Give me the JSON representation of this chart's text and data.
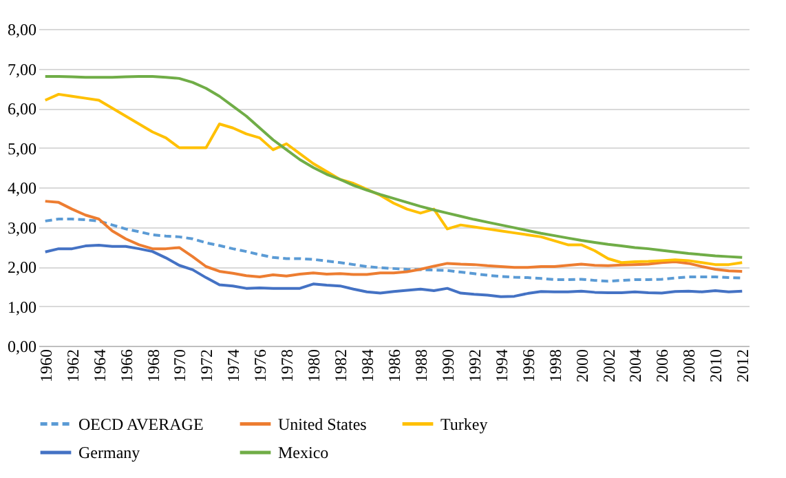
{
  "chart_data": {
    "type": "line",
    "categories": [
      "1960",
      null,
      "1962",
      null,
      "1964",
      null,
      "1966",
      null,
      "1968",
      null,
      "1970",
      null,
      "1972",
      null,
      "1974",
      null,
      "1976",
      null,
      "1978",
      null,
      "1980",
      null,
      "1982",
      null,
      "1984",
      null,
      "1986",
      null,
      "1988",
      null,
      "1990",
      null,
      "1992",
      null,
      "1994",
      null,
      "1996",
      null,
      "1998",
      null,
      "2000",
      null,
      "2002",
      null,
      "2004",
      null,
      "2006",
      null,
      "2008",
      null,
      "2010",
      null,
      "2012"
    ],
    "series": [
      {
        "name": "OECD AVERAGE",
        "color": "#5b9bd5",
        "line_style": "dashed",
        "values": [
          3.15,
          3.2,
          3.2,
          3.18,
          3.15,
          3.05,
          2.95,
          2.88,
          2.8,
          2.77,
          2.75,
          2.7,
          2.6,
          2.53,
          2.45,
          2.38,
          2.3,
          2.23,
          2.2,
          2.2,
          2.18,
          2.14,
          2.1,
          2.05,
          2.0,
          1.97,
          1.95,
          1.93,
          1.92,
          1.91,
          1.9,
          1.86,
          1.82,
          1.78,
          1.75,
          1.73,
          1.72,
          1.7,
          1.67,
          1.67,
          1.68,
          1.65,
          1.63,
          1.65,
          1.67,
          1.67,
          1.68,
          1.71,
          1.74,
          1.74,
          1.74,
          1.72,
          1.71
        ]
      },
      {
        "name": "United States",
        "color": "#ed7d31",
        "line_style": "solid",
        "values": [
          3.65,
          3.62,
          3.45,
          3.3,
          3.2,
          2.9,
          2.7,
          2.55,
          2.45,
          2.45,
          2.48,
          2.25,
          2.0,
          1.88,
          1.83,
          1.77,
          1.74,
          1.79,
          1.76,
          1.81,
          1.84,
          1.81,
          1.82,
          1.8,
          1.8,
          1.84,
          1.84,
          1.87,
          1.93,
          2.01,
          2.08,
          2.06,
          2.05,
          2.02,
          2.0,
          1.98,
          1.98,
          2.0,
          2.0,
          2.03,
          2.06,
          2.03,
          2.02,
          2.04,
          2.05,
          2.06,
          2.1,
          2.12,
          2.08,
          2.0,
          1.93,
          1.89,
          1.88
        ]
      },
      {
        "name": "Turkey",
        "color": "#ffc000",
        "line_style": "solid",
        "values": [
          6.2,
          6.35,
          6.3,
          6.25,
          6.2,
          6.0,
          5.8,
          5.6,
          5.4,
          5.25,
          5.0,
          5.0,
          5.0,
          5.6,
          5.5,
          5.35,
          5.25,
          4.95,
          5.1,
          4.85,
          4.6,
          4.4,
          4.2,
          4.1,
          3.95,
          3.8,
          3.6,
          3.45,
          3.35,
          3.45,
          2.95,
          3.05,
          3.0,
          2.95,
          2.9,
          2.85,
          2.8,
          2.75,
          2.65,
          2.55,
          2.55,
          2.4,
          2.2,
          2.1,
          2.12,
          2.13,
          2.15,
          2.17,
          2.15,
          2.1,
          2.05,
          2.05,
          2.1
        ]
      },
      {
        "name": "Germany",
        "color": "#4472c4",
        "line_style": "solid",
        "values": [
          2.37,
          2.45,
          2.45,
          2.52,
          2.54,
          2.51,
          2.51,
          2.45,
          2.38,
          2.22,
          2.03,
          1.92,
          1.72,
          1.54,
          1.51,
          1.45,
          1.46,
          1.45,
          1.45,
          1.45,
          1.56,
          1.53,
          1.51,
          1.43,
          1.36,
          1.33,
          1.37,
          1.4,
          1.43,
          1.39,
          1.45,
          1.33,
          1.3,
          1.28,
          1.24,
          1.25,
          1.32,
          1.37,
          1.36,
          1.36,
          1.38,
          1.35,
          1.34,
          1.34,
          1.36,
          1.34,
          1.33,
          1.37,
          1.38,
          1.36,
          1.39,
          1.36,
          1.38
        ]
      },
      {
        "name": "Mexico",
        "color": "#70ad47",
        "line_style": "solid",
        "values": [
          6.8,
          6.8,
          6.79,
          6.78,
          6.78,
          6.78,
          6.79,
          6.8,
          6.8,
          6.78,
          6.75,
          6.65,
          6.5,
          6.3,
          6.05,
          5.8,
          5.5,
          5.2,
          4.95,
          4.7,
          4.5,
          4.33,
          4.2,
          4.05,
          3.93,
          3.82,
          3.72,
          3.62,
          3.52,
          3.43,
          3.35,
          3.27,
          3.19,
          3.12,
          3.05,
          2.98,
          2.91,
          2.84,
          2.78,
          2.72,
          2.66,
          2.61,
          2.56,
          2.52,
          2.48,
          2.45,
          2.41,
          2.37,
          2.33,
          2.3,
          2.27,
          2.25,
          2.23
        ]
      }
    ],
    "ylim": [
      0,
      8
    ],
    "yticks": [
      {
        "value": 0,
        "label": "0,00"
      },
      {
        "value": 1,
        "label": "1,00"
      },
      {
        "value": 2,
        "label": "2,00"
      },
      {
        "value": 3,
        "label": "3,00"
      },
      {
        "value": 4,
        "label": "4,00"
      },
      {
        "value": 5,
        "label": "5,00"
      },
      {
        "value": 6,
        "label": "6,00"
      },
      {
        "value": 7,
        "label": "7,00"
      },
      {
        "value": 8,
        "label": "8,00"
      }
    ],
    "grid": "y",
    "legend": "bottom",
    "marker": "none"
  }
}
